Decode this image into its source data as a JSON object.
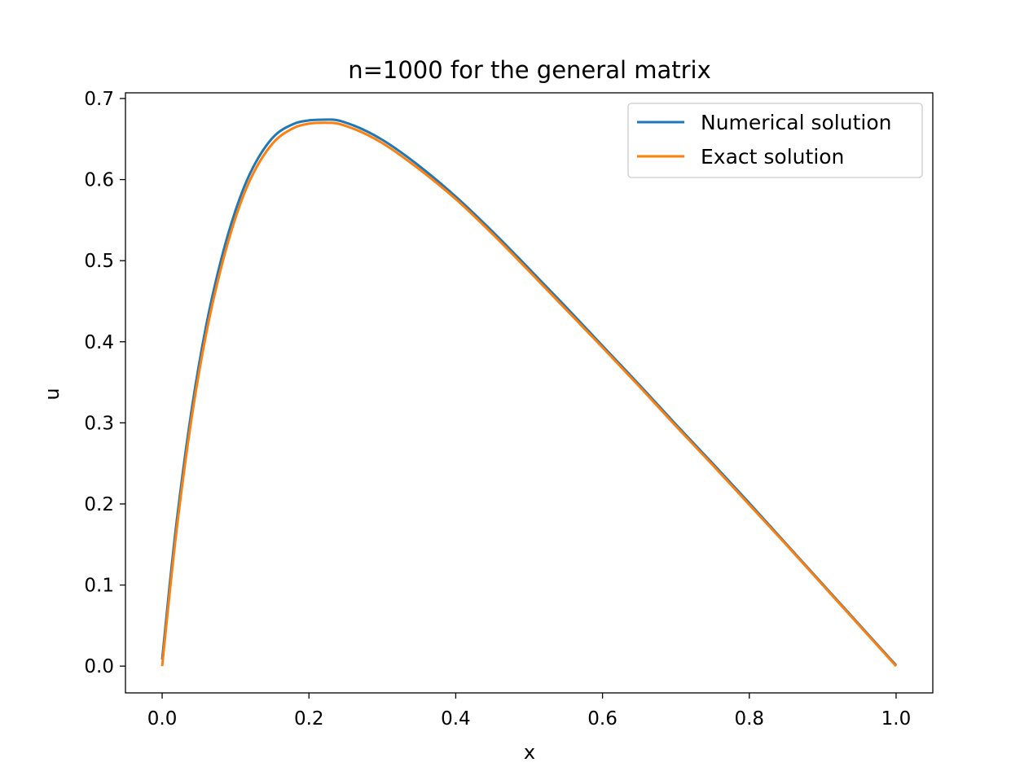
{
  "chart_data": {
    "type": "line",
    "title": "n=1000 for the general matrix",
    "xlabel": "x",
    "ylabel": "u",
    "xlim": [
      -0.05,
      1.05
    ],
    "ylim": [
      -0.033,
      0.707
    ],
    "xticks": [
      0.0,
      0.2,
      0.4,
      0.6,
      0.8,
      1.0
    ],
    "xtick_labels": [
      "0.0",
      "0.2",
      "0.4",
      "0.6",
      "0.8",
      "1.0"
    ],
    "yticks": [
      0.0,
      0.1,
      0.2,
      0.3,
      0.4,
      0.5,
      0.6,
      0.7
    ],
    "ytick_labels": [
      "0.0",
      "0.1",
      "0.2",
      "0.3",
      "0.4",
      "0.5",
      "0.6",
      "0.7"
    ],
    "grid": false,
    "legend_position": "top-right",
    "series": [
      {
        "name": "Numerical solution",
        "color": "#1f77b4",
        "x": [
          0.0,
          0.01,
          0.02,
          0.04,
          0.06,
          0.08,
          0.1,
          0.12,
          0.15,
          0.18,
          0.2,
          0.23,
          0.26,
          0.3,
          0.35,
          0.4,
          0.45,
          0.5,
          0.55,
          0.6,
          0.65,
          0.7,
          0.75,
          0.8,
          0.85,
          0.9,
          0.95,
          1.0
        ],
        "y": [
          0.008,
          0.098,
          0.18,
          0.315,
          0.42,
          0.5,
          0.562,
          0.608,
          0.651,
          0.669,
          0.673,
          0.674,
          0.667,
          0.649,
          0.617,
          0.579,
          0.536,
          0.49,
          0.443,
          0.395,
          0.347,
          0.298,
          0.25,
          0.201,
          0.151,
          0.101,
          0.051,
          0.001
        ]
      },
      {
        "name": "Exact solution",
        "color": "#ff7f0e",
        "x": [
          0.0,
          0.01,
          0.02,
          0.04,
          0.06,
          0.08,
          0.1,
          0.12,
          0.15,
          0.18,
          0.2,
          0.23,
          0.26,
          0.3,
          0.35,
          0.4,
          0.45,
          0.5,
          0.55,
          0.6,
          0.65,
          0.7,
          0.75,
          0.8,
          0.85,
          0.9,
          0.95,
          1.0
        ],
        "y": [
          0.0,
          0.088,
          0.17,
          0.305,
          0.41,
          0.49,
          0.553,
          0.6,
          0.644,
          0.664,
          0.669,
          0.67,
          0.663,
          0.645,
          0.613,
          0.576,
          0.533,
          0.487,
          0.44,
          0.393,
          0.345,
          0.296,
          0.248,
          0.199,
          0.15,
          0.1,
          0.05,
          0.0
        ]
      }
    ]
  }
}
